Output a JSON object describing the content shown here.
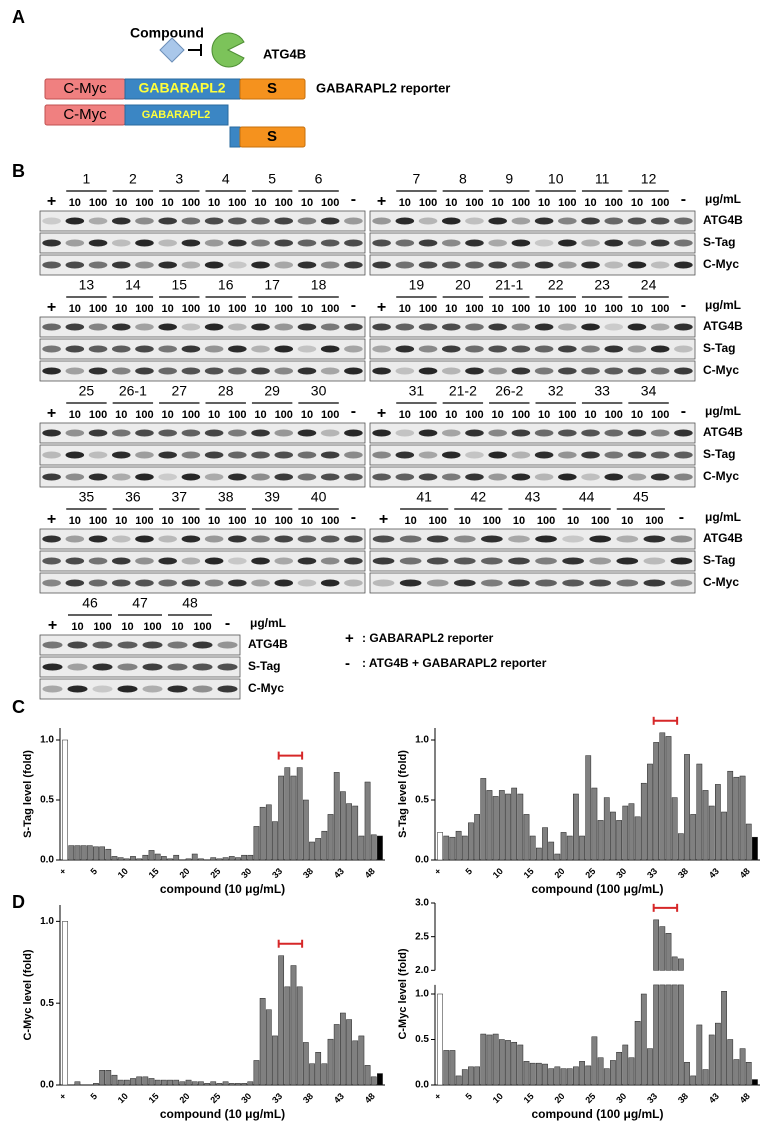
{
  "panel_a": {
    "label": "A",
    "compound": "Compound",
    "enzyme": "ATG4B",
    "reporter": {
      "segments": [
        "C-Myc",
        "GABARAPL2",
        "S"
      ],
      "name": "GABARAPL2  reporter"
    },
    "cleaved_n": [
      "C-Myc",
      "GABARAPL2"
    ],
    "cleaved_c": "S"
  },
  "panel_b": {
    "label": "B",
    "unit": "μg/mL",
    "rows": [
      "ATG4B",
      "S-Tag",
      "C-Myc"
    ],
    "plus": "+",
    "minus": "-",
    "doses": [
      "10",
      "100"
    ],
    "blots": [
      {
        "compounds": [
          "1",
          "2",
          "3",
          "4",
          "5",
          "6"
        ]
      },
      {
        "compounds": [
          "7",
          "8",
          "9",
          "10",
          "11",
          "12"
        ]
      },
      {
        "compounds": [
          "13",
          "14",
          "15",
          "16",
          "17",
          "18"
        ]
      },
      {
        "compounds": [
          "19",
          "20",
          "21-1",
          "22",
          "23",
          "24"
        ]
      },
      {
        "compounds": [
          "25",
          "26-1",
          "27",
          "28",
          "29",
          "30"
        ]
      },
      {
        "compounds": [
          "31",
          "21-2",
          "26-2",
          "32",
          "33",
          "34"
        ]
      },
      {
        "compounds": [
          "35",
          "36",
          "37",
          "38",
          "39",
          "40"
        ]
      },
      {
        "compounds": [
          "41",
          "42",
          "43",
          "44",
          "45"
        ]
      },
      {
        "compounds": [
          "46",
          "47",
          "48"
        ]
      }
    ],
    "legend": [
      {
        "symbol": "+",
        "text": ": GABARAPL2 reporter"
      },
      {
        "symbol": "-",
        "text": ":  ATG4B + GABARAPL2 reporter"
      }
    ]
  },
  "panel_c": {
    "label": "C"
  },
  "panel_d": {
    "label": "D"
  },
  "chart_data": [
    {
      "type": "bar",
      "ylabel": "S-Tag level (fold)",
      "xlabel": "compound (10 μg/mL)",
      "categories": [
        "+",
        null,
        null,
        null,
        null,
        "5",
        null,
        null,
        null,
        null,
        "10",
        null,
        null,
        null,
        null,
        "15",
        null,
        null,
        null,
        null,
        "20",
        null,
        null,
        null,
        null,
        "25",
        null,
        null,
        null,
        null,
        "30",
        null,
        null,
        null,
        null,
        "33",
        null,
        null,
        null,
        null,
        "38",
        null,
        null,
        null,
        null,
        "43",
        null,
        null,
        null,
        null,
        "48",
        null
      ],
      "values": [
        1.0,
        0.12,
        0.12,
        0.12,
        0.12,
        0.11,
        0.11,
        0.09,
        0.03,
        0.02,
        0.01,
        0.03,
        0.01,
        0.04,
        0.08,
        0.05,
        0.03,
        0.01,
        0.04,
        0.0,
        0.01,
        0.05,
        0.01,
        0.0,
        0.02,
        0.01,
        0.02,
        0.03,
        0.02,
        0.04,
        0.04,
        0.28,
        0.44,
        0.46,
        0.32,
        0.7,
        0.77,
        0.7,
        0.77,
        0.5,
        0.15,
        0.18,
        0.24,
        0.38,
        0.73,
        0.57,
        0.47,
        0.45,
        0.2,
        0.65,
        0.21,
        0.2
      ],
      "color": "#808080",
      "first_color": "#ffffff",
      "last_color": "#000000",
      "highlight_color": "#d62728",
      "ylim": [
        0,
        1.1
      ],
      "yticks": [
        {
          "value": 0,
          "label": "0.0"
        },
        0.5,
        {
          "value": 1,
          "label": "1.0"
        }
      ]
    },
    {
      "type": "bar",
      "ylabel": "S-Tag level (fold)",
      "xlabel": "compound (100 μg/mL)",
      "categories": [
        "+",
        null,
        null,
        null,
        null,
        "5",
        null,
        null,
        null,
        null,
        "10",
        null,
        null,
        null,
        null,
        "15",
        null,
        null,
        null,
        null,
        "20",
        null,
        null,
        null,
        null,
        "25",
        null,
        null,
        null,
        null,
        "30",
        null,
        null,
        null,
        null,
        "33",
        null,
        null,
        null,
        null,
        "38",
        null,
        null,
        null,
        null,
        "43",
        null,
        null,
        null,
        null,
        "48",
        null
      ],
      "values": [
        0.23,
        0.2,
        0.19,
        0.24,
        0.2,
        0.31,
        0.38,
        0.68,
        0.58,
        0.53,
        0.58,
        0.55,
        0.6,
        0.55,
        0.38,
        0.2,
        0.1,
        0.27,
        0.15,
        0.05,
        0.23,
        0.2,
        0.55,
        0.2,
        0.87,
        0.6,
        0.33,
        0.52,
        0.4,
        0.33,
        0.45,
        0.47,
        0.36,
        0.64,
        0.8,
        0.98,
        1.06,
        1.03,
        0.52,
        0.22,
        0.88,
        0.38,
        0.8,
        0.58,
        0.45,
        0.63,
        0.4,
        0.74,
        0.69,
        0.7,
        0.3,
        0.19
      ],
      "color": "#808080",
      "first_color": "#ffffff",
      "last_color": "#000000",
      "highlight_color": "#d62728",
      "ylim": [
        0,
        1.1
      ],
      "yticks": [
        {
          "value": 0,
          "label": "0.0"
        },
        0.5,
        {
          "value": 1,
          "label": "1.0"
        }
      ]
    },
    {
      "type": "bar",
      "ylabel": "C-Myc level (fold)",
      "xlabel": "compound (10 μg/mL)",
      "categories": [
        "+",
        null,
        null,
        null,
        null,
        "5",
        null,
        null,
        null,
        null,
        "10",
        null,
        null,
        null,
        null,
        "15",
        null,
        null,
        null,
        null,
        "20",
        null,
        null,
        null,
        null,
        "25",
        null,
        null,
        null,
        null,
        "30",
        null,
        null,
        null,
        null,
        "33",
        null,
        null,
        null,
        null,
        "38",
        null,
        null,
        null,
        null,
        "43",
        null,
        null,
        null,
        null,
        "48",
        null
      ],
      "values": [
        1.0,
        0.0,
        0.02,
        0.0,
        0.0,
        0.01,
        0.09,
        0.09,
        0.06,
        0.03,
        0.03,
        0.04,
        0.05,
        0.05,
        0.04,
        0.03,
        0.03,
        0.03,
        0.03,
        0.02,
        0.03,
        0.02,
        0.02,
        0.01,
        0.02,
        0.01,
        0.02,
        0.01,
        0.01,
        0.01,
        0.02,
        0.15,
        0.53,
        0.46,
        0.3,
        0.79,
        0.6,
        0.73,
        0.6,
        0.26,
        0.13,
        0.2,
        0.13,
        0.28,
        0.37,
        0.44,
        0.4,
        0.27,
        0.3,
        0.12,
        0.05,
        0.07
      ],
      "color": "#808080",
      "first_color": "#ffffff",
      "last_color": "#000000",
      "highlight_color": "#d62728",
      "ylim": [
        0,
        1.1
      ],
      "yticks": [
        {
          "value": 0,
          "label": "0.0"
        },
        0.5,
        {
          "value": 1,
          "label": "1.0"
        }
      ]
    },
    {
      "type": "bar",
      "ylabel": "C-Myc level (fold)",
      "xlabel": "compound (100 μg/mL)",
      "categories": [
        "+",
        null,
        null,
        null,
        null,
        "5",
        null,
        null,
        null,
        null,
        "10",
        null,
        null,
        null,
        null,
        "15",
        null,
        null,
        null,
        null,
        "20",
        null,
        null,
        null,
        null,
        "25",
        null,
        null,
        null,
        null,
        "30",
        null,
        null,
        null,
        null,
        "33",
        null,
        null,
        null,
        null,
        "38",
        null,
        null,
        null,
        null,
        "43",
        null,
        null,
        null,
        null,
        "48",
        null
      ],
      "values": [
        1.0,
        0.38,
        0.38,
        0.1,
        0.17,
        0.2,
        0.2,
        0.56,
        0.55,
        0.56,
        0.5,
        0.49,
        0.47,
        0.44,
        0.26,
        0.24,
        0.24,
        0.23,
        0.18,
        0.2,
        0.18,
        0.18,
        0.2,
        0.26,
        0.21,
        0.53,
        0.3,
        0.18,
        0.27,
        0.36,
        0.44,
        0.3,
        0.7,
        1.0,
        0.4,
        2.75,
        2.65,
        2.55,
        2.2,
        2.17,
        0.25,
        0.1,
        0.66,
        0.17,
        0.55,
        0.68,
        1.03,
        0.5,
        0.28,
        0.4,
        0.25,
        0.06
      ],
      "color": "#808080",
      "first_color": "#ffffff",
      "last_color": "#000000",
      "highlight_color": "#d62728",
      "ylim": [
        0,
        3
      ],
      "ybreak": [
        1.1,
        2
      ],
      "yticks": [
        {
          "value": 0,
          "label": "0.0"
        },
        0.5,
        {
          "value": 1,
          "label": "1.0"
        },
        {
          "value": 2,
          "label": "2.0"
        },
        2.5,
        {
          "value": 3,
          "label": "3.0"
        }
      ]
    }
  ]
}
